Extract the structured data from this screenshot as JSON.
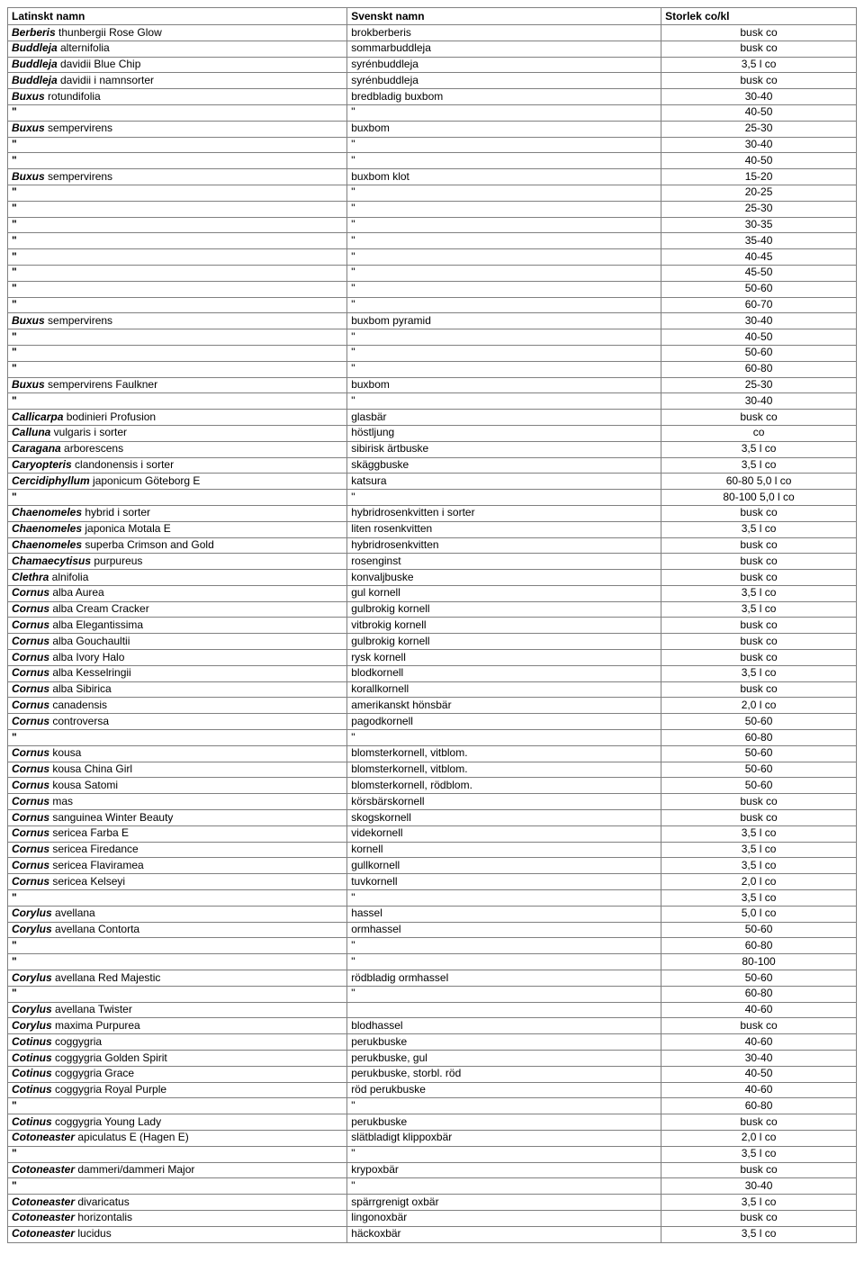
{
  "headers": {
    "latin": "Latinskt namn",
    "svensk": "Svenskt namn",
    "storlek": "Storlek co/kl"
  },
  "rows": [
    {
      "genus": "Berberis",
      "rest": "thunbergii Rose Glow",
      "svensk": "brokberberis",
      "stor": "busk co"
    },
    {
      "genus": "Buddleja",
      "rest": "alternifolia",
      "svensk": "sommarbuddleja",
      "stor": "busk co"
    },
    {
      "genus": "Buddleja",
      "rest": "davidii Blue Chip",
      "svensk": "syrénbuddleja",
      "stor": "3,5 l co"
    },
    {
      "genus": "Buddleja",
      "rest": "davidii i namnsorter",
      "svensk": "syrénbuddleja",
      "stor": "busk co"
    },
    {
      "genus": "Buxus",
      "rest": "rotundifolia",
      "svensk": "bredbladig buxbom",
      "stor": "30-40"
    },
    {
      "latin": "\"",
      "svensk": "\"",
      "stor": "40-50"
    },
    {
      "genus": "Buxus",
      "rest": "sempervirens",
      "svensk": "buxbom",
      "stor": "25-30"
    },
    {
      "latin": "\"",
      "svensk": "\"",
      "stor": "30-40"
    },
    {
      "latin": "\"",
      "svensk": "\"",
      "stor": "40-50"
    },
    {
      "genus": "Buxus",
      "rest": "sempervirens",
      "svensk": "buxbom               klot",
      "stor": "15-20"
    },
    {
      "latin": "\"",
      "svensk": "\"",
      "stor": "20-25"
    },
    {
      "latin": "\"",
      "svensk": "\"",
      "stor": "25-30"
    },
    {
      "latin": "\"",
      "svensk": "\"",
      "stor": "30-35"
    },
    {
      "latin": "\"",
      "svensk": "\"",
      "stor": "35-40"
    },
    {
      "latin": "\"",
      "svensk": "\"",
      "stor": "40-45"
    },
    {
      "latin": "\"",
      "svensk": "\"",
      "stor": "45-50"
    },
    {
      "latin": "\"",
      "svensk": "\"",
      "stor": "50-60"
    },
    {
      "latin": "\"",
      "svensk": "\"",
      "stor": "60-70"
    },
    {
      "genus": "Buxus",
      "rest": "sempervirens",
      "svensk": "buxbom               pyramid",
      "stor": "30-40"
    },
    {
      "latin": "\"",
      "svensk": "\"",
      "stor": "40-50"
    },
    {
      "latin": "\"",
      "svensk": "\"",
      "stor": "50-60"
    },
    {
      "latin": "\"",
      "svensk": "\"",
      "stor": "60-80"
    },
    {
      "genus": "Buxus",
      "rest": "sempervirens Faulkner",
      "svensk": "buxbom",
      "stor": "25-30"
    },
    {
      "latin": "\"",
      "svensk": "\"",
      "stor": "30-40"
    },
    {
      "genus": "Callicarpa",
      "rest": "bodinieri Profusion",
      "svensk": "glasbär",
      "stor": "busk co"
    },
    {
      "genus": "Calluna",
      "rest": "vulgaris i sorter",
      "svensk": "höstljung",
      "stor": "co"
    },
    {
      "genus": "Caragana",
      "rest": "arborescens",
      "svensk": "sibirisk ärtbuske",
      "stor": "3,5 l co"
    },
    {
      "genus": "Caryopteris",
      "rest": "clandonensis i sorter",
      "svensk": "skäggbuske",
      "stor": "3,5 l co"
    },
    {
      "genus": "Cercidiphyllum",
      "rest": "japonicum Göteborg E",
      "svensk": "katsura",
      "stor": "60-80 5,0 l co"
    },
    {
      "latin": "\"",
      "svensk": "\"",
      "stor": "80-100 5,0 l co"
    },
    {
      "genus": "Chaenomeles",
      "rest": "hybrid i sorter",
      "svensk": "hybridrosenkvitten i sorter",
      "stor": "busk co"
    },
    {
      "genus": "Chaenomeles",
      "rest": "japonica Motala E",
      "svensk": "liten rosenkvitten",
      "stor": "3,5 l co"
    },
    {
      "genus": "Chaenomeles",
      "rest": "superba Crimson and Gold",
      "svensk": "hybridrosenkvitten",
      "stor": "busk co"
    },
    {
      "genus": "Chamaecytisus",
      "rest": "purpureus",
      "svensk": "rosenginst",
      "stor": "busk co"
    },
    {
      "genus": "Clethra",
      "rest": "alnifolia",
      "svensk": "konvaljbuske",
      "stor": "busk co"
    },
    {
      "genus": "Cornus",
      "rest": "alba Aurea",
      "svensk": "gul kornell",
      "stor": "3,5 l co"
    },
    {
      "genus": "Cornus",
      "rest": "alba Cream Cracker",
      "svensk": "gulbrokig kornell",
      "stor": "3,5 l co"
    },
    {
      "genus": "Cornus",
      "rest": "alba Elegantissima",
      "svensk": "vitbrokig kornell",
      "stor": "busk co"
    },
    {
      "genus": "Cornus",
      "rest": "alba Gouchaultii",
      "svensk": "gulbrokig kornell",
      "stor": "busk co"
    },
    {
      "genus": "Cornus",
      "rest": "alba Ivory Halo",
      "svensk": "rysk kornell",
      "stor": "busk co"
    },
    {
      "genus": "Cornus",
      "rest": "alba Kesselringii",
      "svensk": "blodkornell",
      "stor": "3,5 l co"
    },
    {
      "genus": "Cornus",
      "rest": "alba Sibirica",
      "svensk": "korallkornell",
      "stor": "busk co"
    },
    {
      "genus": "Cornus",
      "rest": "canadensis",
      "svensk": "amerikanskt hönsbär",
      "stor": "2,0 l co"
    },
    {
      "genus": "Cornus",
      "rest": "controversa",
      "svensk": "pagodkornell",
      "stor": "50-60"
    },
    {
      "latin": "\"",
      "svensk": "\"",
      "stor": "60-80"
    },
    {
      "genus": "Cornus",
      "rest": "kousa",
      "svensk": "blomsterkornell, vitblom.",
      "stor": "50-60"
    },
    {
      "genus": "Cornus",
      "rest": "kousa China Girl",
      "svensk": "blomsterkornell, vitblom.",
      "stor": "50-60"
    },
    {
      "genus": "Cornus",
      "rest": "kousa Satomi",
      "svensk": "blomsterkornell, rödblom.",
      "stor": "50-60"
    },
    {
      "genus": "Cornus",
      "rest": "mas",
      "svensk": "körsbärskornell",
      "stor": "busk co"
    },
    {
      "genus": "Cornus",
      "rest": "sanguinea Winter Beauty",
      "svensk": "skogskornell",
      "stor": "busk co"
    },
    {
      "genus": "Cornus",
      "rest": "sericea Farba E",
      "svensk": "videkornell",
      "stor": "3,5 l co"
    },
    {
      "genus": "Cornus",
      "rest": "sericea Firedance",
      "svensk": "kornell",
      "stor": "3,5 l co"
    },
    {
      "genus": "Cornus",
      "rest": "sericea Flaviramea",
      "svensk": "gullkornell",
      "stor": "3,5 l co"
    },
    {
      "genus": "Cornus",
      "rest": "sericea Kelseyi",
      "svensk": "tuvkornell",
      "stor": "2,0 l co"
    },
    {
      "latin": "\"",
      "svensk": "\"",
      "stor": "3,5 l co"
    },
    {
      "genus": "Corylus",
      "rest": "avellana",
      "svensk": "hassel",
      "stor": "5,0 l co"
    },
    {
      "genus": "Corylus",
      "rest": "avellana Contorta",
      "svensk": "ormhassel",
      "stor": "50-60"
    },
    {
      "latin": "\"",
      "svensk": "\"",
      "stor": "60-80"
    },
    {
      "latin": "\"",
      "svensk": "\"",
      "stor": "80-100"
    },
    {
      "genus": "Corylus",
      "rest": "avellana Red Majestic",
      "svensk": "rödbladig ormhassel",
      "stor": "50-60"
    },
    {
      "latin": "\"",
      "svensk": "\"",
      "stor": "60-80"
    },
    {
      "genus": "Corylus",
      "rest": "avellana Twister",
      "svensk": "",
      "stor": "40-60"
    },
    {
      "genus": "Corylus",
      "rest": "maxima Purpurea",
      "svensk": "blodhassel",
      "stor": "busk co"
    },
    {
      "genus": "Cotinus",
      "rest": "coggygria",
      "svensk": "perukbuske",
      "stor": "40-60"
    },
    {
      "genus": "Cotinus",
      "rest": "coggygria Golden Spirit",
      "svensk": "perukbuske, gul",
      "stor": "30-40"
    },
    {
      "genus": "Cotinus",
      "rest": "coggygria Grace",
      "svensk": "perukbuske, storbl. röd",
      "stor": "40-50"
    },
    {
      "genus": "Cotinus",
      "rest": "coggygria Royal Purple",
      "svensk": "röd perukbuske",
      "stor": "40-60"
    },
    {
      "latin": "\"",
      "svensk": "\"",
      "stor": "60-80"
    },
    {
      "genus": "Cotinus",
      "rest": "coggygria Young Lady",
      "svensk": "perukbuske",
      "stor": "busk co"
    },
    {
      "genus": "Cotoneaster",
      "rest": "apiculatus E (Hagen E)",
      "svensk": "slätbladigt klippoxbär",
      "stor": "2,0 l co"
    },
    {
      "latin": "\"",
      "svensk": "\"",
      "stor": "3,5 l co"
    },
    {
      "genus": "Cotoneaster",
      "rest": "dammeri/dammeri Major",
      "svensk": "krypoxbär",
      "stor": "busk co"
    },
    {
      "latin": "\"",
      "svensk": "\"",
      "stor": "30-40"
    },
    {
      "genus": "Cotoneaster",
      "rest": "divaricatus",
      "svensk": "spärrgrenigt oxbär",
      "stor": "3,5 l co"
    },
    {
      "genus": "Cotoneaster",
      "rest": "horizontalis",
      "svensk": "lingonoxbär",
      "stor": "busk co"
    },
    {
      "genus": "Cotoneaster",
      "rest": "lucidus",
      "svensk": "häckoxbär",
      "stor": "3,5 l co"
    }
  ]
}
